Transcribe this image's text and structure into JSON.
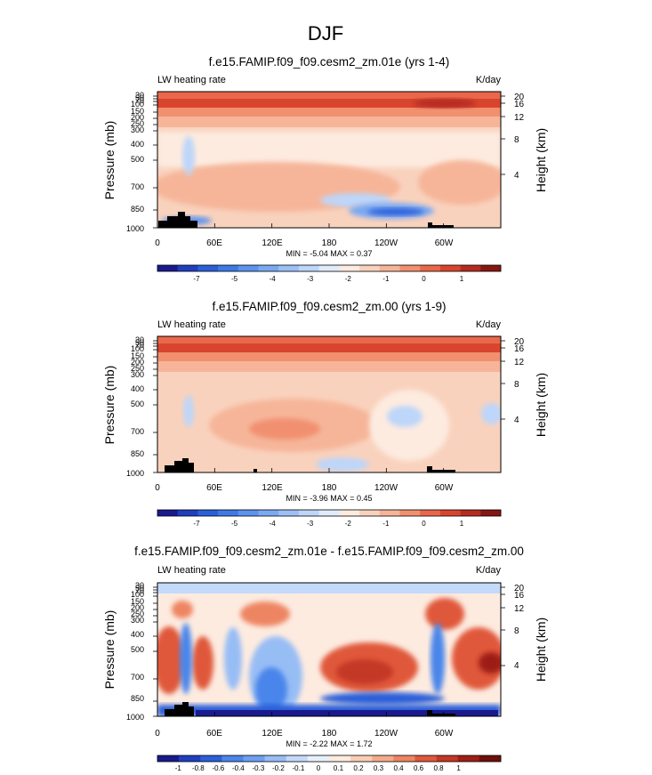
{
  "figure": {
    "title": "DJF"
  },
  "chart_data": [
    {
      "type": "heatmap",
      "title": "f.e15.FAMIP.f09_f09.cesm2_zm.01e (yrs 1-4)",
      "left_label": "LW heating rate",
      "right_label": "K/day",
      "ylabel": "Pressure (mb)",
      "ylabel_right": "Height (km)",
      "x_ticks": [
        "0",
        "60E",
        "120E",
        "180",
        "120W",
        "60W"
      ],
      "pressure_ticks": [
        "30",
        "50",
        "70",
        "100",
        "150",
        "200",
        "250",
        "300",
        "400",
        "500",
        "700",
        "850",
        "1000"
      ],
      "height_ticks": [
        "20",
        "16",
        "12",
        "8",
        "4"
      ],
      "stats": "MIN = -5.04  MAX =  0.37",
      "colorbar_labels": [
        "-7",
        "-5",
        "-4",
        "-3",
        "-2",
        "-1",
        "0",
        "1"
      ],
      "levels": [
        -8,
        -7,
        -6,
        -5,
        -4.5,
        -4,
        -3.5,
        -3,
        -2.5,
        -2,
        -1.5,
        -1,
        -0.5,
        0,
        0.5,
        1
      ],
      "colors": [
        "#1a1a8e",
        "#1f3fbf",
        "#2b5fd9",
        "#3d7ae6",
        "#5b93ee",
        "#7aa9f2",
        "#9cc0f6",
        "#bdd6f9",
        "#e0ecfb",
        "#fdebe0",
        "#f9d2bd",
        "#f6b599",
        "#f1906f",
        "#e9684a",
        "#d8452f",
        "#b52b20",
        "#861612"
      ]
    },
    {
      "type": "heatmap",
      "title": "f.e15.FAMIP.f09_f09.cesm2_zm.00 (yrs 1-9)",
      "left_label": "LW heating rate",
      "right_label": "K/day",
      "ylabel": "Pressure (mb)",
      "ylabel_right": "Height (km)",
      "x_ticks": [
        "0",
        "60E",
        "120E",
        "180",
        "120W",
        "60W"
      ],
      "pressure_ticks": [
        "30",
        "50",
        "70",
        "100",
        "150",
        "200",
        "250",
        "300",
        "400",
        "500",
        "700",
        "850",
        "1000"
      ],
      "height_ticks": [
        "20",
        "16",
        "12",
        "8",
        "4"
      ],
      "stats": "MIN = -3.96  MAX =  0.45",
      "colorbar_labels": [
        "-7",
        "-5",
        "-4",
        "-3",
        "-2",
        "-1",
        "0",
        "1"
      ],
      "levels": [
        -8,
        -7,
        -6,
        -5,
        -4.5,
        -4,
        -3.5,
        -3,
        -2.5,
        -2,
        -1.5,
        -1,
        -0.5,
        0,
        0.5,
        1
      ],
      "colors": [
        "#1a1a8e",
        "#1f3fbf",
        "#2b5fd9",
        "#3d7ae6",
        "#5b93ee",
        "#7aa9f2",
        "#9cc0f6",
        "#bdd6f9",
        "#e0ecfb",
        "#fdebe0",
        "#f9d2bd",
        "#f6b599",
        "#f1906f",
        "#e9684a",
        "#d8452f",
        "#b52b20",
        "#861612"
      ]
    },
    {
      "type": "heatmap",
      "title": "f.e15.FAMIP.f09_f09.cesm2_zm.01e - f.e15.FAMIP.f09_f09.cesm2_zm.00",
      "left_label": "LW heating rate",
      "right_label": "K/day",
      "ylabel": "Pressure (mb)",
      "ylabel_right": "Height (km)",
      "x_ticks": [
        "0",
        "60E",
        "120E",
        "180",
        "120W",
        "60W"
      ],
      "pressure_ticks": [
        "30",
        "50",
        "70",
        "100",
        "150",
        "200",
        "250",
        "300",
        "400",
        "500",
        "700",
        "850",
        "1000"
      ],
      "height_ticks": [
        "20",
        "16",
        "12",
        "8",
        "4"
      ],
      "stats": "MIN = -2.22  MAX =  1.72",
      "colorbar_labels": [
        "-1",
        "-0.8",
        "-0.6",
        "-0.4",
        "-0.3",
        "-0.2",
        "-0.1",
        "0",
        "0.1",
        "0.2",
        "0.3",
        "0.4",
        "0.6",
        "0.8",
        "1"
      ],
      "levels": [
        -1,
        -0.8,
        -0.6,
        -0.4,
        -0.3,
        -0.2,
        -0.1,
        0,
        0.1,
        0.2,
        0.3,
        0.4,
        0.6,
        0.8,
        1
      ],
      "colors": [
        "#1a1a8e",
        "#1f3fbf",
        "#2b5fd9",
        "#4a85ea",
        "#6e9ff0",
        "#97bdf5",
        "#c3dafa",
        "#e6f0fc",
        "#fdebe0",
        "#f9cdb4",
        "#f4aa8a",
        "#ee8562",
        "#e0583b",
        "#c43726",
        "#9e1f17",
        "#6e0f0c"
      ]
    }
  ]
}
